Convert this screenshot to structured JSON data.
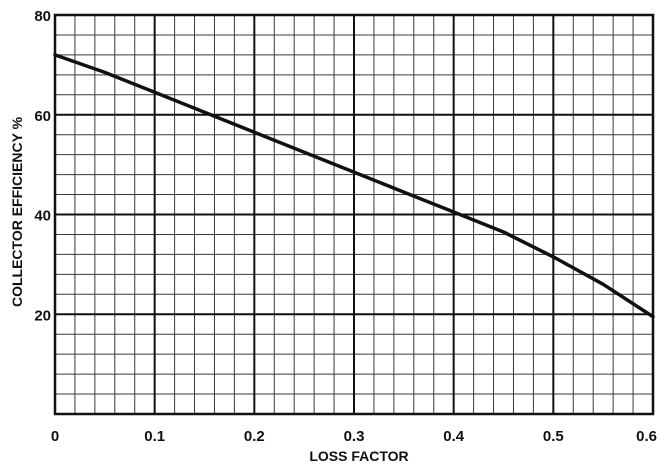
{
  "chart_data": {
    "type": "line",
    "xlabel": "LOSS FACTOR",
    "ylabel": "COLLECTOR EFFICIENCY %",
    "xlim": [
      0,
      0.6
    ],
    "ylim": [
      0,
      80
    ],
    "x_ticks": [
      "0",
      "0.1",
      "0.2",
      "0.3",
      "0.4",
      "0.5",
      "0.6"
    ],
    "y_ticks": [
      "20",
      "40",
      "60",
      "80"
    ],
    "x_tick_values": [
      0,
      0.1,
      0.2,
      0.3,
      0.4,
      0.5,
      0.6
    ],
    "y_tick_values": [
      20,
      40,
      60,
      80
    ],
    "grid": true,
    "series": [
      {
        "x": [
          0,
          0.05,
          0.1,
          0.15,
          0.2,
          0.25,
          0.3,
          0.35,
          0.4,
          0.45,
          0.5,
          0.55,
          0.6
        ],
        "values": [
          72,
          68.5,
          64.5,
          60.5,
          56.5,
          52.5,
          48.5,
          44.5,
          40.5,
          36.5,
          31.5,
          26,
          19.5
        ]
      }
    ],
    "colors": {
      "grid_minor": "#3a3a3a",
      "grid_major": "#111111",
      "line": "#111111",
      "background": "#ffffff"
    }
  }
}
